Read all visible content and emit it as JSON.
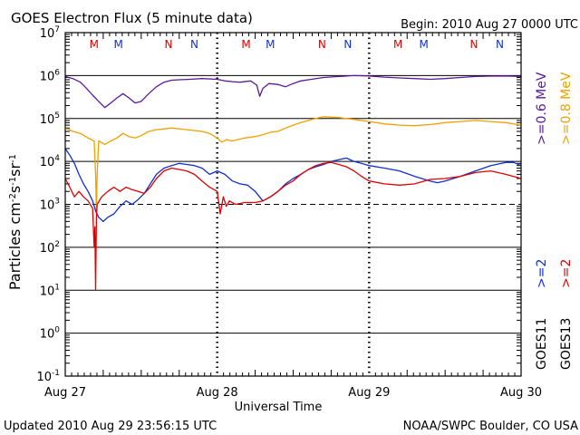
{
  "header": {
    "title": "GOES Electron Flux (5 minute data)",
    "begin": "Begin: 2010 Aug 27 0000 UTC"
  },
  "footer": {
    "updated": "Updated 2010 Aug 29 23:56:15 UTC",
    "credit": "NOAA/SWPC Boulder, CO USA"
  },
  "colors": {
    "goes11_06": "#5b1a99",
    "goes13_08": "#f0a000",
    "goes11_2": "#1030d0",
    "goes13_2": "#e00000",
    "marker_m": "#e00000",
    "marker_n": "#1030d0"
  },
  "chart_data": {
    "type": "line",
    "title": "GOES Electron Flux (5 minute data)",
    "xlabel": "Universal Time",
    "ylabel": "Particles cm-2s-1sr-1",
    "yscale": "log",
    "ylim": [
      0.1,
      10000000
    ],
    "y_ticks": [
      "10-1",
      "100",
      "101",
      "102",
      "103",
      "104",
      "105",
      "106",
      "107"
    ],
    "x_range_days": [
      0,
      3
    ],
    "x_ticks": [
      "Aug 27",
      "Aug 28",
      "Aug 29",
      "Aug 30"
    ],
    "markers": [
      {
        "label": "M",
        "day": 0.19,
        "color": "#e00000"
      },
      {
        "label": "M",
        "day": 0.35,
        "color": "#1030d0"
      },
      {
        "label": "N",
        "day": 0.68,
        "color": "#e00000"
      },
      {
        "label": "N",
        "day": 0.85,
        "color": "#1030d0"
      },
      {
        "label": "M",
        "day": 1.19,
        "color": "#e00000"
      },
      {
        "label": "M",
        "day": 1.35,
        "color": "#1030d0"
      },
      {
        "label": "N",
        "day": 1.69,
        "color": "#e00000"
      },
      {
        "label": "N",
        "day": 1.86,
        "color": "#1030d0"
      },
      {
        "label": "M",
        "day": 2.19,
        "color": "#e00000"
      },
      {
        "label": "M",
        "day": 2.36,
        "color": "#1030d0"
      },
      {
        "label": "N",
        "day": 2.69,
        "color": "#e00000"
      },
      {
        "label": "N",
        "day": 2.86,
        "color": "#1030d0"
      }
    ],
    "right_labels": [
      {
        "text": ">=0.6 MeV",
        "color": "#5b1a99"
      },
      {
        "text": ">=0.8 MeV",
        "color": "#f0a000"
      },
      {
        "text": ">=2",
        "color": "#1030d0"
      },
      {
        "text": ">=2",
        "color": "#e00000"
      },
      {
        "text": "GOES11",
        "color": "#000000"
      },
      {
        "text": "GOES13",
        "color": "#000000"
      }
    ],
    "series": [
      {
        "name": ">=0.6 MeV",
        "color": "#5b1a99",
        "points": [
          [
            0.0,
            950000
          ],
          [
            0.05,
            850000
          ],
          [
            0.1,
            700000
          ],
          [
            0.14,
            500000
          ],
          [
            0.18,
            350000
          ],
          [
            0.22,
            250000
          ],
          [
            0.26,
            180000
          ],
          [
            0.3,
            230000
          ],
          [
            0.34,
            300000
          ],
          [
            0.38,
            380000
          ],
          [
            0.42,
            300000
          ],
          [
            0.46,
            230000
          ],
          [
            0.5,
            250000
          ],
          [
            0.55,
            380000
          ],
          [
            0.6,
            550000
          ],
          [
            0.65,
            700000
          ],
          [
            0.7,
            780000
          ],
          [
            0.75,
            800000
          ],
          [
            0.82,
            820000
          ],
          [
            0.9,
            850000
          ],
          [
            1.0,
            820000
          ],
          [
            1.05,
            750000
          ],
          [
            1.1,
            720000
          ],
          [
            1.15,
            700000
          ],
          [
            1.22,
            750000
          ],
          [
            1.26,
            600000
          ],
          [
            1.28,
            330000
          ],
          [
            1.3,
            500000
          ],
          [
            1.34,
            650000
          ],
          [
            1.4,
            620000
          ],
          [
            1.45,
            550000
          ],
          [
            1.5,
            650000
          ],
          [
            1.55,
            750000
          ],
          [
            1.6,
            800000
          ],
          [
            1.7,
            900000
          ],
          [
            1.8,
            950000
          ],
          [
            1.9,
            1000000
          ],
          [
            2.0,
            980000
          ],
          [
            2.1,
            920000
          ],
          [
            2.2,
            880000
          ],
          [
            2.3,
            850000
          ],
          [
            2.4,
            820000
          ],
          [
            2.5,
            850000
          ],
          [
            2.6,
            900000
          ],
          [
            2.7,
            950000
          ],
          [
            2.8,
            970000
          ],
          [
            2.9,
            980000
          ],
          [
            3.0,
            950000
          ]
        ]
      },
      {
        "name": ">=0.8 MeV",
        "color": "#f0a000",
        "points": [
          [
            0.0,
            60000
          ],
          [
            0.05,
            50000
          ],
          [
            0.1,
            45000
          ],
          [
            0.15,
            35000
          ],
          [
            0.19,
            30000
          ],
          [
            0.2,
            5000
          ],
          [
            0.205,
            600
          ],
          [
            0.21,
            5000
          ],
          [
            0.22,
            30000
          ],
          [
            0.26,
            25000
          ],
          [
            0.3,
            30000
          ],
          [
            0.34,
            35000
          ],
          [
            0.38,
            45000
          ],
          [
            0.42,
            38000
          ],
          [
            0.46,
            35000
          ],
          [
            0.5,
            40000
          ],
          [
            0.55,
            50000
          ],
          [
            0.6,
            55000
          ],
          [
            0.7,
            60000
          ],
          [
            0.8,
            55000
          ],
          [
            0.9,
            50000
          ],
          [
            0.95,
            45000
          ],
          [
            1.0,
            35000
          ],
          [
            1.03,
            28000
          ],
          [
            1.06,
            32000
          ],
          [
            1.1,
            30000
          ],
          [
            1.18,
            35000
          ],
          [
            1.25,
            38000
          ],
          [
            1.3,
            42000
          ],
          [
            1.35,
            48000
          ],
          [
            1.4,
            50000
          ],
          [
            1.45,
            60000
          ],
          [
            1.5,
            70000
          ],
          [
            1.55,
            80000
          ],
          [
            1.6,
            90000
          ],
          [
            1.65,
            100000
          ],
          [
            1.7,
            110000
          ],
          [
            1.8,
            105000
          ],
          [
            1.9,
            95000
          ],
          [
            2.0,
            85000
          ],
          [
            2.1,
            75000
          ],
          [
            2.2,
            70000
          ],
          [
            2.3,
            68000
          ],
          [
            2.4,
            72000
          ],
          [
            2.5,
            80000
          ],
          [
            2.6,
            85000
          ],
          [
            2.7,
            90000
          ],
          [
            2.8,
            85000
          ],
          [
            2.9,
            80000
          ],
          [
            3.0,
            70000
          ]
        ]
      },
      {
        "name": ">=2 (GOES11)",
        "color": "#1030d0",
        "points": [
          [
            0.0,
            20000
          ],
          [
            0.03,
            14000
          ],
          [
            0.06,
            9000
          ],
          [
            0.09,
            5000
          ],
          [
            0.12,
            3000
          ],
          [
            0.15,
            2000
          ],
          [
            0.18,
            1200
          ],
          [
            0.2,
            700
          ],
          [
            0.22,
            500
          ],
          [
            0.25,
            400
          ],
          [
            0.28,
            500
          ],
          [
            0.32,
            600
          ],
          [
            0.36,
            900
          ],
          [
            0.4,
            1200
          ],
          [
            0.44,
            1000
          ],
          [
            0.48,
            1300
          ],
          [
            0.52,
            1800
          ],
          [
            0.56,
            3000
          ],
          [
            0.6,
            5000
          ],
          [
            0.65,
            7000
          ],
          [
            0.7,
            8000
          ],
          [
            0.75,
            9000
          ],
          [
            0.8,
            8500
          ],
          [
            0.85,
            8000
          ],
          [
            0.9,
            7000
          ],
          [
            0.95,
            5000
          ],
          [
            1.0,
            6000
          ],
          [
            1.05,
            5000
          ],
          [
            1.1,
            3500
          ],
          [
            1.15,
            3000
          ],
          [
            1.2,
            2800
          ],
          [
            1.25,
            2000
          ],
          [
            1.3,
            1200
          ],
          [
            1.35,
            1500
          ],
          [
            1.4,
            2000
          ],
          [
            1.45,
            3000
          ],
          [
            1.5,
            4000
          ],
          [
            1.55,
            5000
          ],
          [
            1.6,
            6500
          ],
          [
            1.65,
            7500
          ],
          [
            1.7,
            8500
          ],
          [
            1.75,
            10000
          ],
          [
            1.8,
            11000
          ],
          [
            1.85,
            12000
          ],
          [
            1.9,
            10000
          ],
          [
            1.95,
            9000
          ],
          [
            2.0,
            8000
          ],
          [
            2.1,
            7000
          ],
          [
            2.2,
            6000
          ],
          [
            2.3,
            4500
          ],
          [
            2.4,
            3500
          ],
          [
            2.45,
            3200
          ],
          [
            2.5,
            3500
          ],
          [
            2.6,
            4500
          ],
          [
            2.7,
            6000
          ],
          [
            2.8,
            8000
          ],
          [
            2.9,
            9500
          ],
          [
            2.95,
            9500
          ],
          [
            3.0,
            8000
          ]
        ]
      },
      {
        "name": ">=2 (GOES13)",
        "color": "#e00000",
        "points": [
          [
            0.0,
            4000
          ],
          [
            0.03,
            2500
          ],
          [
            0.06,
            1500
          ],
          [
            0.09,
            2000
          ],
          [
            0.12,
            1500
          ],
          [
            0.15,
            1200
          ],
          [
            0.18,
            800
          ],
          [
            0.19,
            100
          ],
          [
            0.195,
            300
          ],
          [
            0.2,
            10
          ],
          [
            0.205,
            500
          ],
          [
            0.21,
            1000
          ],
          [
            0.24,
            1500
          ],
          [
            0.28,
            2000
          ],
          [
            0.32,
            2500
          ],
          [
            0.36,
            2000
          ],
          [
            0.4,
            2500
          ],
          [
            0.44,
            2200
          ],
          [
            0.48,
            2000
          ],
          [
            0.52,
            1800
          ],
          [
            0.56,
            2500
          ],
          [
            0.6,
            4000
          ],
          [
            0.65,
            6000
          ],
          [
            0.7,
            7000
          ],
          [
            0.75,
            6500
          ],
          [
            0.8,
            6000
          ],
          [
            0.85,
            5000
          ],
          [
            0.9,
            3500
          ],
          [
            0.95,
            2500
          ],
          [
            1.0,
            2000
          ],
          [
            1.02,
            600
          ],
          [
            1.04,
            1500
          ],
          [
            1.06,
            900
          ],
          [
            1.08,
            1200
          ],
          [
            1.12,
            1000
          ],
          [
            1.18,
            1100
          ],
          [
            1.25,
            1100
          ],
          [
            1.3,
            1200
          ],
          [
            1.35,
            1500
          ],
          [
            1.4,
            2000
          ],
          [
            1.45,
            2800
          ],
          [
            1.5,
            3500
          ],
          [
            1.55,
            5000
          ],
          [
            1.6,
            6500
          ],
          [
            1.65,
            8000
          ],
          [
            1.7,
            9000
          ],
          [
            1.75,
            9500
          ],
          [
            1.8,
            8500
          ],
          [
            1.85,
            7500
          ],
          [
            1.9,
            6000
          ],
          [
            1.95,
            4500
          ],
          [
            2.0,
            3500
          ],
          [
            2.1,
            3000
          ],
          [
            2.2,
            2800
          ],
          [
            2.3,
            3000
          ],
          [
            2.4,
            3800
          ],
          [
            2.5,
            4000
          ],
          [
            2.6,
            4500
          ],
          [
            2.7,
            5500
          ],
          [
            2.8,
            6000
          ],
          [
            2.9,
            5000
          ],
          [
            3.0,
            4000
          ]
        ]
      }
    ]
  }
}
